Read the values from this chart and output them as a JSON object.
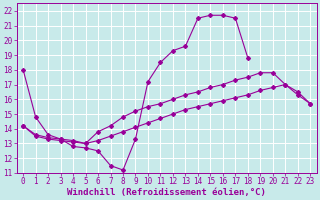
{
  "background_color": "#c8eaea",
  "grid_color": "#ffffff",
  "line_color": "#990099",
  "xlabel": "Windchill (Refroidissement éolien,°C)",
  "xlabel_fontsize": 6.5,
  "tick_fontsize": 5.5,
  "xlim": [
    -0.5,
    23.5
  ],
  "ylim": [
    11,
    22.5
  ],
  "yticks": [
    11,
    12,
    13,
    14,
    15,
    16,
    17,
    18,
    19,
    20,
    21,
    22
  ],
  "xticks": [
    0,
    1,
    2,
    3,
    4,
    5,
    6,
    7,
    8,
    9,
    10,
    11,
    12,
    13,
    14,
    15,
    16,
    17,
    18,
    19,
    20,
    21,
    22,
    23
  ],
  "line1_x": [
    0,
    1,
    2,
    3,
    4,
    5,
    6,
    7,
    8,
    9,
    10,
    11,
    12,
    13,
    14,
    15,
    16,
    17,
    18,
    19,
    20,
    21,
    22,
    23
  ],
  "line1_y": [
    18,
    14.8,
    13.6,
    13.3,
    12.8,
    12.7,
    12.5,
    11.5,
    11.2,
    13.3,
    17.2,
    18.5,
    19.3,
    19.6,
    21.5,
    21.7,
    21.7,
    21.5,
    18.8,
    null,
    null,
    null,
    null,
    null
  ],
  "line2_x": [
    0,
    1,
    2,
    3,
    4,
    5,
    6,
    7,
    8,
    9,
    10,
    11,
    12,
    13,
    14,
    15,
    16,
    17,
    18,
    19,
    20,
    21,
    22,
    23
  ],
  "line2_y": [
    14.2,
    13.6,
    13.4,
    13.3,
    13.2,
    13.0,
    13.8,
    14.2,
    14.8,
    15.2,
    15.5,
    15.7,
    16.0,
    16.3,
    16.5,
    16.8,
    17.0,
    17.3,
    17.5,
    17.8,
    17.8,
    17.0,
    16.5,
    15.7
  ],
  "line3_x": [
    0,
    1,
    2,
    3,
    4,
    5,
    6,
    7,
    8,
    9,
    10,
    11,
    12,
    13,
    14,
    15,
    16,
    17,
    18,
    19,
    20,
    21,
    22,
    23
  ],
  "line3_y": [
    14.2,
    13.5,
    13.3,
    13.2,
    13.1,
    13.0,
    13.2,
    13.5,
    13.8,
    14.1,
    14.4,
    14.7,
    15.0,
    15.3,
    15.5,
    15.7,
    15.9,
    16.1,
    16.3,
    16.6,
    16.8,
    17.0,
    16.3,
    15.7
  ]
}
